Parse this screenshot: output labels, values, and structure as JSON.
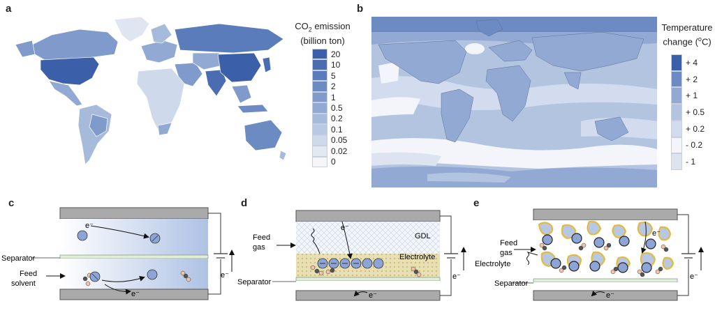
{
  "panels": {
    "a": "a",
    "b": "b",
    "c": "c",
    "d": "d",
    "e": "e"
  },
  "legend_a": {
    "title_line1": "CO",
    "title_sub": "2",
    "title_line1_rest": " emission",
    "title_line2": "(billion ton)",
    "labels": [
      "20",
      "10",
      "5",
      "2",
      "1",
      "0.5",
      "0.2",
      "0.1",
      "0.05",
      "0.02",
      "0"
    ],
    "colors": [
      "#3b5fa8",
      "#4a6db2",
      "#5b7cbb",
      "#6d8bc3",
      "#7f9acb",
      "#92aad3",
      "#a6badb",
      "#bac9e3",
      "#ced9eb",
      "#e2e9f3",
      "#f4f6fa"
    ]
  },
  "legend_b": {
    "title_line1": "Temperature",
    "title_line2_pre": "change (",
    "title_sup": "o",
    "title_line2_post": "C)",
    "labels": [
      "+ 4",
      "+ 2",
      "+ 1",
      "+ 0.5",
      "+ 0.2",
      "- 0.2",
      "- 1"
    ],
    "colors": [
      "#3b5fa8",
      "#6d8bc3",
      "#92aad3",
      "#b3c4e0",
      "#d2dcee",
      "#f3f5fa",
      "#dde4f0"
    ]
  },
  "diagram_c": {
    "electron_top": "e⁻",
    "electron_bottom": "e⁻",
    "electron_circuit": "e⁻",
    "separator": "Separator",
    "feed_line1": "Feed",
    "feed_line2": "solvent"
  },
  "diagram_d": {
    "feed_line1": "Feed",
    "feed_line2": "gas",
    "gdl": "GDL",
    "electrolyte": "Electrolyte",
    "separator": "Separator",
    "electron_top": "e⁻",
    "electron_bottom": "e⁻",
    "electron_circuit": "e⁻"
  },
  "diagram_e": {
    "feed_line1": "Feed",
    "feed_line2": "gas",
    "electrolyte": "Electrolyte",
    "separator": "Separator",
    "electron_top": "e⁻",
    "electron_bottom": "e⁻",
    "electron_circuit": "e⁻"
  }
}
